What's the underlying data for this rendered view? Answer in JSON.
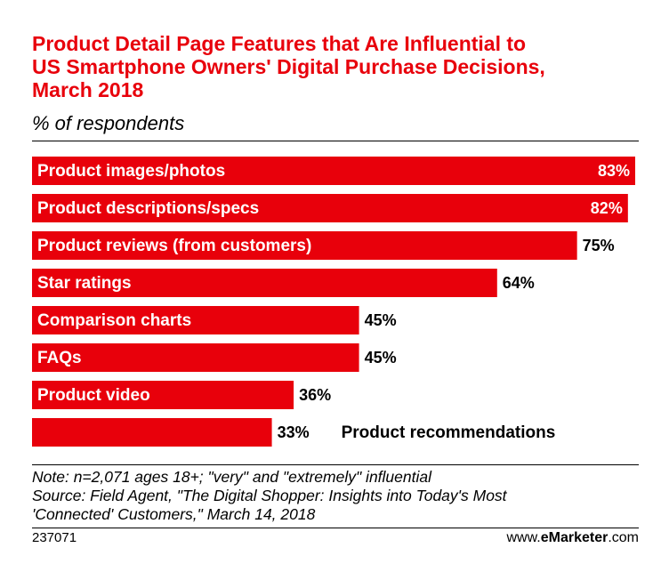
{
  "chart_data": {
    "type": "bar",
    "orientation": "horizontal",
    "title": "Product Detail Page Features that Are Influential to US Smartphone Owners' Digital Purchase Decisions, March 2018",
    "title_lines": [
      "Product Detail Page Features that Are Influential to",
      "US Smartphone Owners' Digital Purchase Decisions,",
      "March 2018"
    ],
    "subtitle": "% of respondents",
    "xlabel": "",
    "ylabel": "",
    "xlim": [
      0,
      83
    ],
    "grid": false,
    "legend": "none",
    "categories": [
      "Product images/photos",
      "Product descriptions/specs",
      "Product reviews (from customers)",
      "Star ratings",
      "Comparison charts",
      "FAQs",
      "Product video",
      "Product recommendations"
    ],
    "values": [
      83,
      82,
      75,
      64,
      45,
      45,
      36,
      33
    ],
    "value_labels": [
      "83%",
      "82%",
      "75%",
      "64%",
      "45%",
      "45%",
      "36%",
      "33%"
    ],
    "bar_color": "#e8000b"
  },
  "note_lines": [
    "Note: n=2,071 ages 18+; \"very\" and \"extremely\" influential",
    "Source: Field Agent, \"The Digital Shopper: Insights into Today's Most",
    "'Connected' Customers,\" March 14, 2018"
  ],
  "chart_id": "237071",
  "brand": {
    "prefix": "www.",
    "name": "eMarketer",
    "suffix": ".com"
  }
}
